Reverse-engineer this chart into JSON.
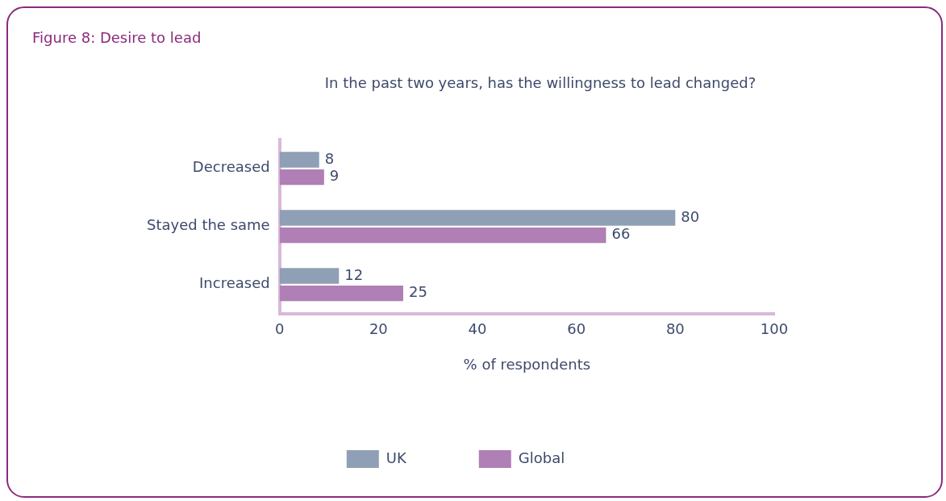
{
  "chart_data": {
    "type": "bar",
    "orientation": "horizontal",
    "title": "Figure 8: Desire to lead",
    "subtitle": "In the past two years, has the willingness to lead changed?",
    "xlabel": "% of respondents",
    "categories": [
      "Decreased",
      "Stayed the same",
      "Increased"
    ],
    "series": [
      {
        "name": "UK",
        "color": "#8f9fb5",
        "values": [
          8,
          80,
          12
        ]
      },
      {
        "name": "Global",
        "color": "#b07fb5",
        "values": [
          9,
          66,
          25
        ]
      }
    ],
    "xlim": [
      0,
      100
    ],
    "xticks": [
      0,
      20,
      40,
      60,
      80,
      100
    ],
    "grid": false,
    "legend": "bottom",
    "data_labels": true
  }
}
